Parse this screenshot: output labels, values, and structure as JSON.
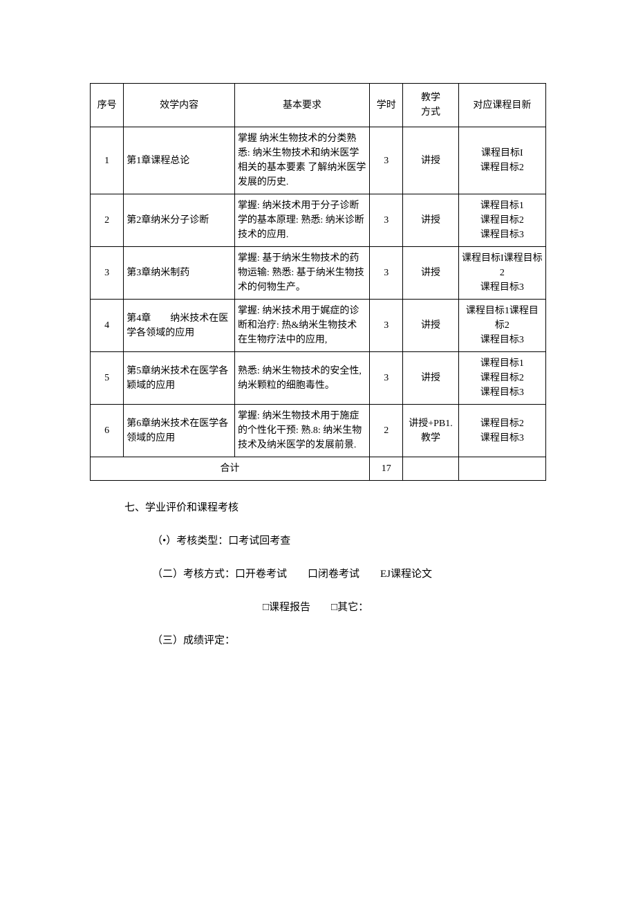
{
  "table": {
    "header": {
      "seq": "序号",
      "content": "效学内容",
      "req": "基本要求",
      "hours": "学时",
      "method": "教学\n方式",
      "obj": "对应课程目新"
    },
    "rows": [
      {
        "seq": "1",
        "content": "第1章课程总论",
        "req": "掌握 纳米生物技术的分类熟悉: 纳米生物技术和纳米医学相关的基本要素 了解纳米医学发展的历史.",
        "hours": "3",
        "method": "讲授",
        "obj": "课程目标I\n课程目标2"
      },
      {
        "seq": "2",
        "content": "第2章纳米分子诊断",
        "req": "掌握: 纳米技术用于分子诊断学的基本原理: 熟悉: 纳米诊断技术的应用.",
        "hours": "3",
        "method": "讲授",
        "obj": "课程目标1\n课程目标2\n课程目标3"
      },
      {
        "seq": "3",
        "content": "第3章纳米制药",
        "req": "掌握: 基于纳米生物技术的药物运输: 熟悉: 基于纳米生物技术的何物生产。",
        "hours": "3",
        "method": "讲授",
        "obj": "课程目标I课程目标2\n课程目标3"
      },
      {
        "seq": "4",
        "content": "第4章　　纳米技术在医学各领域的应用",
        "req": "掌握: 纳米技术用于娓症的诊断和治疗: 热&纳米生物技术在生物疗法中的应用,",
        "hours": "3",
        "method": "讲授",
        "obj": "课程目标1课程目标2\n课程目标3"
      },
      {
        "seq": "5",
        "content": "第5章纳米技术在医学各颖域的应用",
        "req": "熟悉: 纳米生物技术的安全性, 纳米颗粒的细胞毒性。",
        "hours": "3",
        "method": "讲授",
        "obj": "课程目标1\n课程目标2\n课程目标3"
      },
      {
        "seq": "6",
        "content": "第6章纳米技术在医学各领域的应用",
        "req": "掌握: 纳米生物技术用于施症的个性化干预: 熟.8: 纳米生物技术及纳米医学的发展前景.",
        "hours": "2",
        "method": "讲授+PB1.教学",
        "obj": "课程目标2\n课程目标3"
      }
    ],
    "total": {
      "label": "合计",
      "hours": "17"
    }
  },
  "section": {
    "title": "七、学业评价和课程考核",
    "line1": "（•）考核类型：口考试回考查",
    "line2": "（二）考核方式：口开卷考试　　口闭卷考试　　EJ课程论文",
    "line3": "□课程报告　　□其它：",
    "line4": "（三）成绩评定："
  }
}
